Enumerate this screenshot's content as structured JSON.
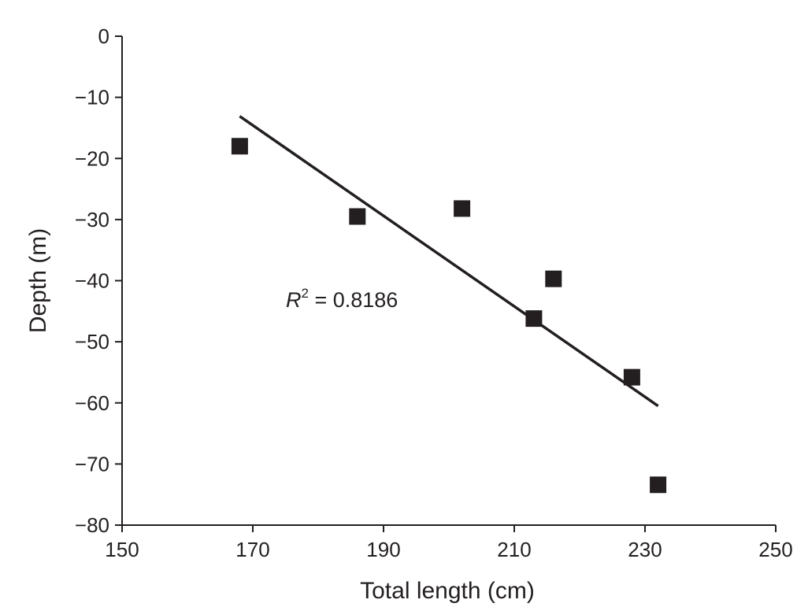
{
  "chart_data": {
    "type": "scatter",
    "xlabel": "Total length (cm)",
    "ylabel": "Depth (m)",
    "xlim": [
      150,
      250
    ],
    "ylim": [
      -80,
      0
    ],
    "xticks": [
      150,
      170,
      190,
      210,
      230,
      250
    ],
    "yticks": [
      0,
      -10,
      -20,
      -30,
      -40,
      -50,
      -60,
      -70,
      -80
    ],
    "xtick_labels": [
      "150",
      "170",
      "190",
      "210",
      "230",
      "250"
    ],
    "ytick_labels": [
      "0",
      "−10",
      "−20",
      "−30",
      "−40",
      "−50",
      "−60",
      "−70",
      "−80"
    ],
    "grid": false,
    "series": [
      {
        "marker": "square",
        "color": "#231f20",
        "points": [
          {
            "x": 168,
            "y": -18.0
          },
          {
            "x": 186,
            "y": -29.5
          },
          {
            "x": 202,
            "y": -28.2
          },
          {
            "x": 213,
            "y": -46.2
          },
          {
            "x": 216,
            "y": -39.7
          },
          {
            "x": 228,
            "y": -55.8
          },
          {
            "x": 232,
            "y": -73.4
          }
        ]
      }
    ],
    "trendline": {
      "type": "linear",
      "start": {
        "x": 168,
        "y": -13.1
      },
      "end": {
        "x": 232,
        "y": -60.5
      },
      "color": "#231f20"
    },
    "annotation": {
      "var": "R",
      "sup": "2",
      "text": " = 0.8186"
    }
  }
}
